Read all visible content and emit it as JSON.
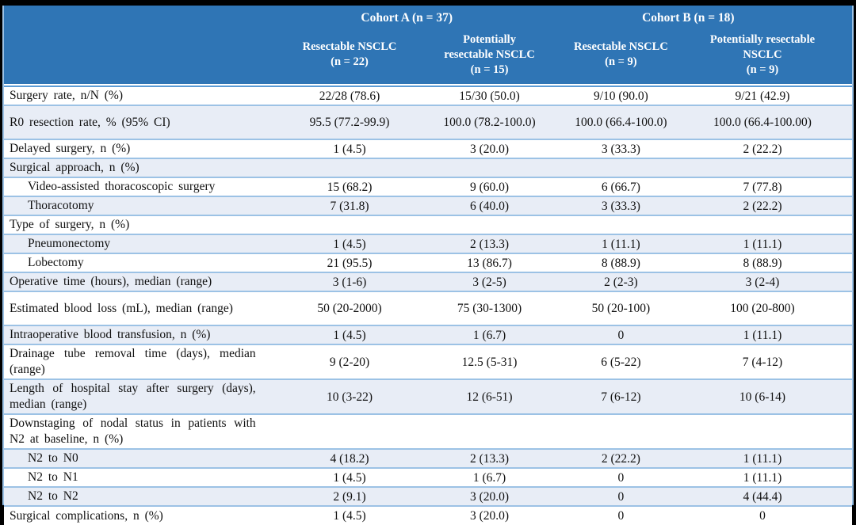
{
  "table": {
    "header": {
      "cohort_a": "Cohort A (n = 37)",
      "cohort_b": "Cohort B (n = 18)",
      "columns": [
        "Resectable NSCLC\n(n = 22)",
        "Potentially\nresectable NSCLC\n(n = 15)",
        "Resectable NSCLC\n(n = 9)",
        "Potentially resectable\nNSCLC\n(n = 9)"
      ]
    },
    "rows": [
      {
        "label": "Surgery rate, n/N (%)",
        "values": [
          "22/28 (78.6)",
          "15/30 (50.0)",
          "9/10 (90.0)",
          "9/21 (42.9)"
        ]
      },
      {
        "label": "R0 resection rate, % (95% CI)",
        "spacious": true,
        "values": [
          "95.5 (77.2-99.9)",
          "100.0 (78.2-100.0)",
          "100.0 (66.4-100.0)",
          "100.0 (66.4-100.00)"
        ]
      },
      {
        "label": "Delayed surgery, n (%)",
        "values": [
          "1 (4.5)",
          "3 (20.0)",
          "3 (33.3)",
          "2 (22.2)"
        ]
      },
      {
        "label": "Surgical approach, n (%)",
        "values": [
          "",
          "",
          "",
          ""
        ]
      },
      {
        "label": "Video-assisted thoracoscopic surgery",
        "indent": true,
        "values": [
          "15 (68.2)",
          "9 (60.0)",
          "6 (66.7)",
          "7 (77.8)"
        ]
      },
      {
        "label": "Thoracotomy",
        "indent": true,
        "values": [
          "7 (31.8)",
          "6 (40.0)",
          "3 (33.3)",
          "2 (22.2)"
        ]
      },
      {
        "label": "Type of surgery, n (%)",
        "values": [
          "",
          "",
          "",
          ""
        ]
      },
      {
        "label": "Pneumonectomy",
        "indent": true,
        "values": [
          "1 (4.5)",
          "2 (13.3)",
          "1 (11.1)",
          "1 (11.1)"
        ]
      },
      {
        "label": "Lobectomy",
        "indent": true,
        "values": [
          "21 (95.5)",
          "13 (86.7)",
          "8 (88.9)",
          "8 (88.9)"
        ]
      },
      {
        "label": "Operative time (hours), median (range)",
        "values": [
          "3 (1-6)",
          "3 (2-5)",
          "2 (2-3)",
          "3 (2-4)"
        ]
      },
      {
        "label": "Estimated blood loss (mL), median (range)",
        "spacious": true,
        "values": [
          "50 (20-2000)",
          "75 (30-1300)",
          "50 (20-100)",
          "100 (20-800)"
        ]
      },
      {
        "label": "Intraoperative blood transfusion, n (%)",
        "values": [
          "1 (4.5)",
          "1 (6.7)",
          "0",
          "1 (11.1)"
        ]
      },
      {
        "label": "Drainage tube removal time (days), median\n(range)",
        "values": [
          "9 (2-20)",
          "12.5 (5-31)",
          "6 (5-22)",
          "7 (4-12)"
        ]
      },
      {
        "label": "Length of hospital stay after surgery (days),\nmedian (range)",
        "values": [
          "10 (3-22)",
          "12 (6-51)",
          "7 (6-12)",
          "10 (6-14)"
        ]
      },
      {
        "label": "Downstaging of nodal status in patients with\nN2 at baseline, n (%)",
        "values": [
          "",
          "",
          "",
          ""
        ]
      },
      {
        "label": "N2 to N0",
        "indent": true,
        "values": [
          "4 (18.2)",
          "2 (13.3)",
          "2 (22.2)",
          "1 (11.1)"
        ]
      },
      {
        "label": "N2 to N1",
        "indent": true,
        "values": [
          "1 (4.5)",
          "1 (6.7)",
          "0",
          "1 (11.1)"
        ]
      },
      {
        "label": "N2 to N2",
        "indent": true,
        "values": [
          "2 (9.1)",
          "3 (20.0)",
          "0",
          "4 (44.4)"
        ]
      },
      {
        "label": "Surgical complications, n (%)",
        "values": [
          "1 (4.5)",
          "3 (20.0)",
          "0",
          "0"
        ]
      }
    ]
  },
  "colors": {
    "header_bg": "#2f75b5",
    "header_text": "#ffffff",
    "shaded_row": "#e8edf6",
    "row_border": "#9cc2e5",
    "header_rule": "#5b9bd5",
    "frame_background": "#000000"
  }
}
